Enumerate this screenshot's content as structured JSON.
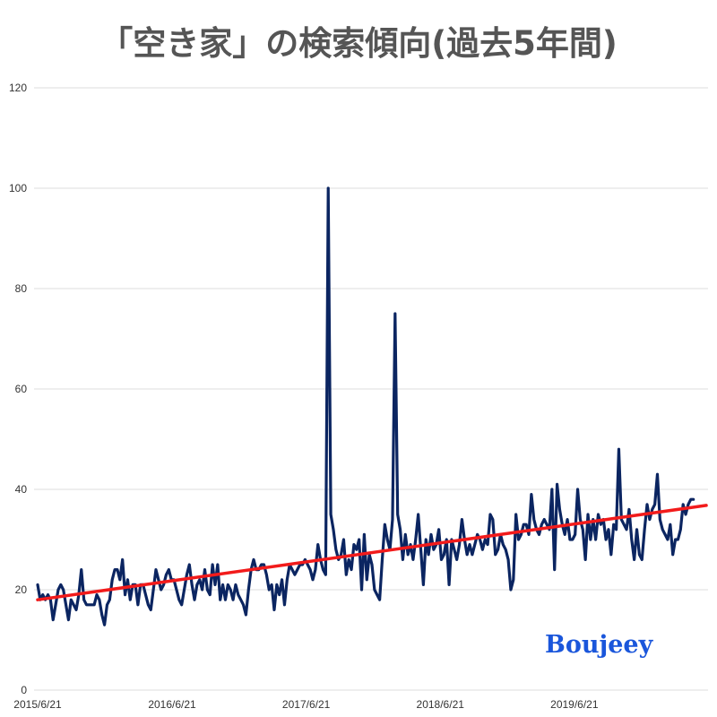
{
  "watermark": "Boujeey",
  "colors": {
    "series": "#0b2561",
    "trend": "#f21b1b",
    "grid": "#dddddd",
    "title": "#555555",
    "watermark": "#1a56db"
  },
  "chart_data": {
    "type": "line",
    "title": "「空き家」の検索傾向(過去5年間)",
    "xlabel": "",
    "ylabel": "",
    "ylim": [
      0,
      120
    ],
    "y_ticks": [
      0,
      20,
      40,
      60,
      80,
      100,
      120
    ],
    "x_tick_labels": [
      "2015/6/21",
      "2016/6/21",
      "2017/6/21",
      "2018/6/21",
      "2019/6/21"
    ],
    "x_range": [
      "2015-06-21",
      "2020-06-14"
    ],
    "grid": true,
    "legend": "none",
    "series": [
      {
        "frequency": "weekly",
        "start": "2015-06-21",
        "values": [
          21,
          18,
          19,
          18,
          19,
          18,
          14,
          17,
          20,
          21,
          20,
          17,
          14,
          18,
          17,
          16,
          19,
          24,
          18,
          17,
          17,
          17,
          17,
          19,
          18,
          15,
          13,
          17,
          18,
          22,
          24,
          24,
          22,
          26,
          19,
          22,
          18,
          21,
          21,
          17,
          21,
          21,
          19,
          17,
          16,
          20,
          24,
          22,
          20,
          21,
          23,
          24,
          22,
          22,
          20,
          18,
          17,
          20,
          23,
          25,
          21,
          18,
          21,
          22,
          20,
          24,
          20,
          19,
          25,
          21,
          25,
          18,
          21,
          18,
          21,
          20,
          18,
          21,
          19,
          18,
          17,
          15,
          20,
          24,
          26,
          24,
          24,
          25,
          25,
          23,
          20,
          21,
          16,
          21,
          19,
          22,
          17,
          22,
          25,
          24,
          23,
          24,
          25,
          25,
          26,
          25,
          24,
          22,
          24,
          29,
          26,
          24,
          23,
          100,
          35,
          32,
          28,
          26,
          27,
          30,
          23,
          26,
          24,
          29,
          28,
          30,
          20,
          31,
          22,
          27,
          25,
          20,
          19,
          18,
          26,
          33,
          30,
          28,
          34,
          75,
          35,
          32,
          26,
          31,
          27,
          29,
          26,
          30,
          35,
          28,
          21,
          30,
          27,
          31,
          28,
          29,
          32,
          26,
          27,
          30,
          21,
          30,
          28,
          26,
          29,
          34,
          30,
          27,
          29,
          27,
          29,
          31,
          30,
          28,
          30,
          29,
          35,
          34,
          27,
          28,
          31,
          29,
          28,
          26,
          20,
          22,
          35,
          30,
          31,
          33,
          33,
          31,
          39,
          34,
          32,
          31,
          33,
          34,
          33,
          32,
          40,
          24,
          41,
          36,
          33,
          31,
          34,
          30,
          30,
          31,
          40,
          34,
          32,
          26,
          35,
          30,
          34,
          30,
          35,
          33,
          34,
          30,
          32,
          27,
          33,
          32,
          48,
          34,
          33,
          32,
          36,
          30,
          26,
          32,
          27,
          26,
          32,
          37,
          34,
          36,
          37,
          43,
          34,
          32,
          31,
          30,
          33,
          27,
          30,
          30,
          32,
          37,
          35,
          37,
          38,
          38
        ]
      },
      {
        "type": "trendline",
        "x": [
          "2015-06-21",
          "2020-06-14"
        ],
        "values": [
          18,
          36.8
        ]
      }
    ]
  }
}
